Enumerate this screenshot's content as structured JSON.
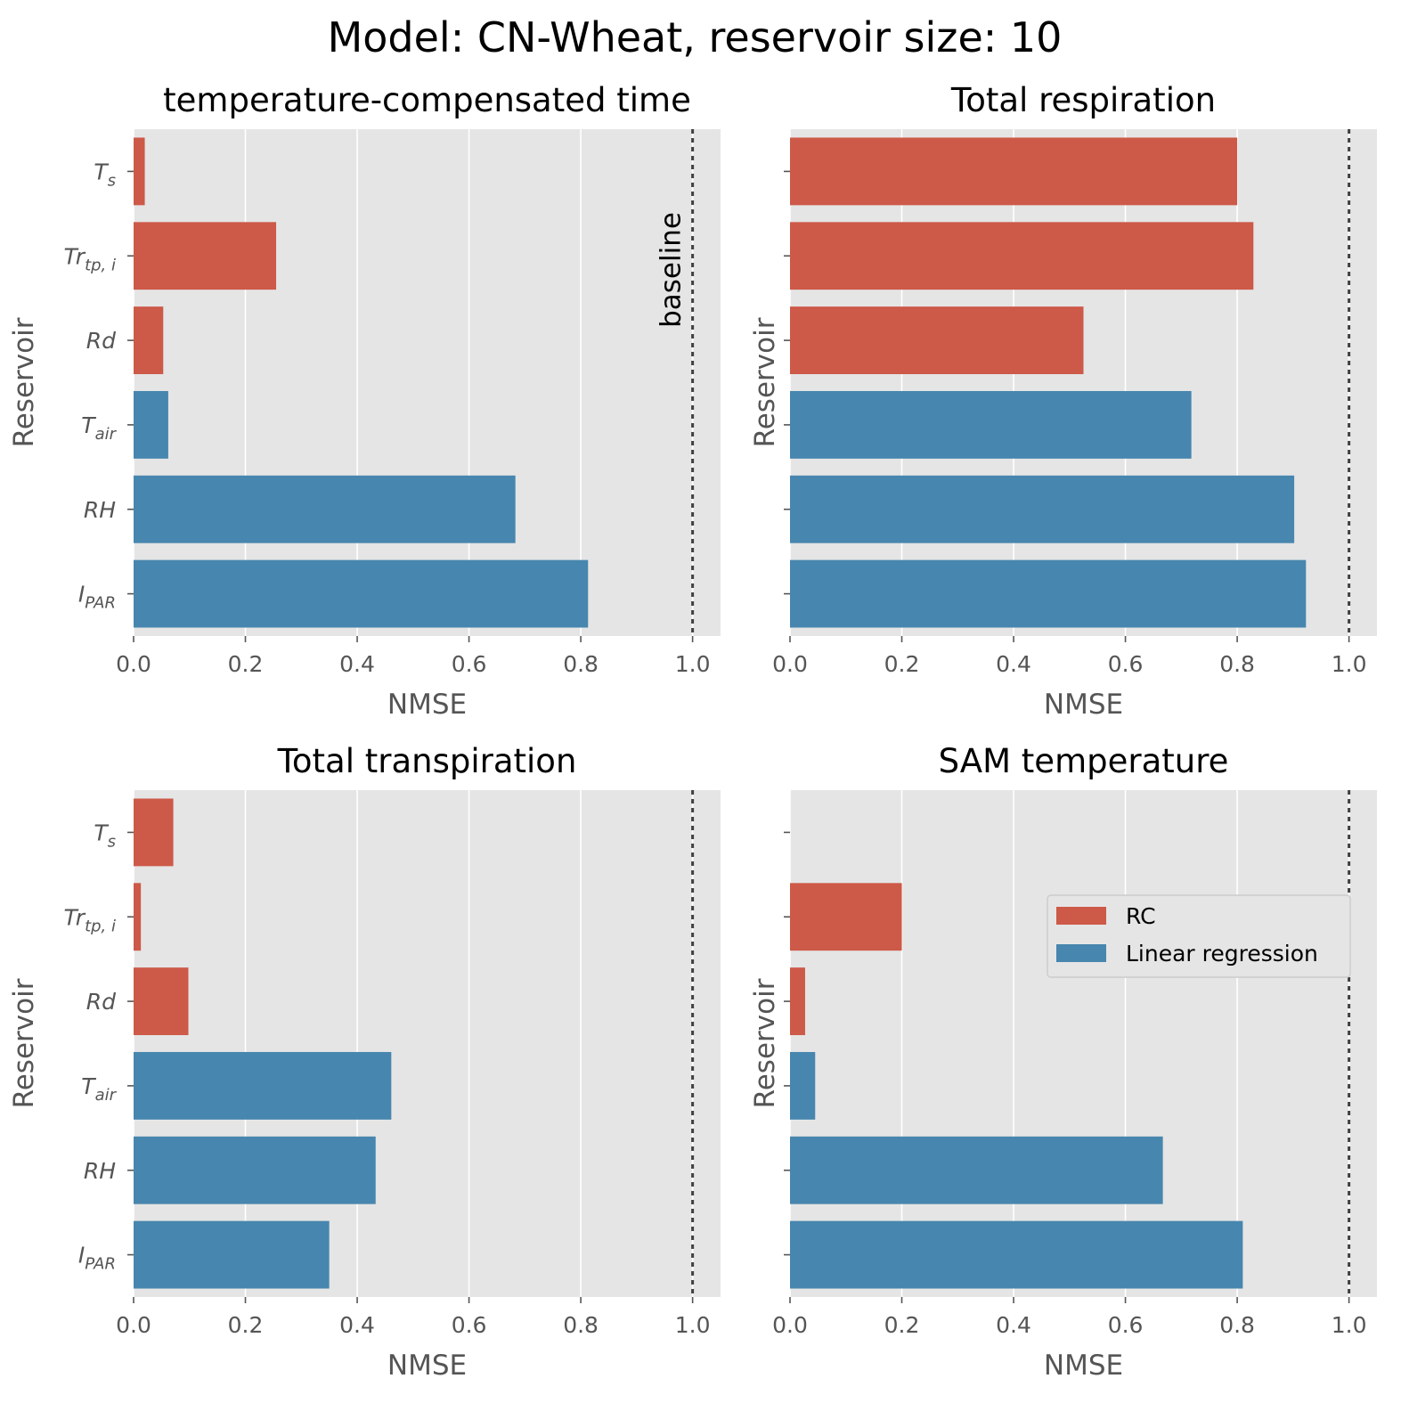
{
  "figure": {
    "title": "Model: CN-Wheat, reservoir size: 10"
  },
  "colors": {
    "RC": "#cd5948",
    "Linear regression": "#4786ae",
    "plot_background": "#e5e5e5",
    "grid": "#ffffff",
    "baseline": "#404040"
  },
  "chart_data": [
    {
      "type": "bar",
      "orientation": "horizontal",
      "title": "temperature-compensated time",
      "xlabel": "NMSE",
      "ylabel": "Reservoir",
      "xlim": [
        0,
        1.05
      ],
      "xticks": [
        "0.0",
        "0.2",
        "0.4",
        "0.6",
        "0.8",
        "1.0"
      ],
      "grid": true,
      "categories": [
        {
          "base": "T",
          "sub": "s"
        },
        {
          "base": "Tr",
          "sub": "tp, i"
        },
        {
          "base": "Rd",
          "sub": ""
        },
        {
          "base": "T",
          "sub": "air"
        },
        {
          "base": "RH",
          "sub": ""
        },
        {
          "base": "I",
          "sub": "PAR"
        }
      ],
      "values": [
        0.02,
        0.255,
        0.053,
        0.062,
        0.683,
        0.813
      ],
      "groups": [
        "RC",
        "RC",
        "RC",
        "Linear regression",
        "Linear regression",
        "Linear regression"
      ],
      "baseline": {
        "x": 1.0,
        "label": "baseline"
      },
      "show_ytick_labels": true
    },
    {
      "type": "bar",
      "orientation": "horizontal",
      "title": "Total respiration",
      "xlabel": "NMSE",
      "ylabel": "Reservoir",
      "xlim": [
        0,
        1.05
      ],
      "xticks": [
        "0.0",
        "0.2",
        "0.4",
        "0.6",
        "0.8",
        "1.0"
      ],
      "grid": true,
      "categories": [
        {
          "base": "T",
          "sub": "s"
        },
        {
          "base": "Tr",
          "sub": "tp, i"
        },
        {
          "base": "Rd",
          "sub": ""
        },
        {
          "base": "T",
          "sub": "air"
        },
        {
          "base": "RH",
          "sub": ""
        },
        {
          "base": "I",
          "sub": "PAR"
        }
      ],
      "values": [
        0.8,
        0.829,
        0.525,
        0.718,
        0.902,
        0.923
      ],
      "groups": [
        "RC",
        "RC",
        "RC",
        "Linear regression",
        "Linear regression",
        "Linear regression"
      ],
      "baseline": {
        "x": 1.0,
        "label": ""
      },
      "show_ytick_labels": false
    },
    {
      "type": "bar",
      "orientation": "horizontal",
      "title": "Total transpiration",
      "xlabel": "NMSE",
      "ylabel": "Reservoir",
      "xlim": [
        0,
        1.05
      ],
      "xticks": [
        "0.0",
        "0.2",
        "0.4",
        "0.6",
        "0.8",
        "1.0"
      ],
      "grid": true,
      "categories": [
        {
          "base": "T",
          "sub": "s"
        },
        {
          "base": "Tr",
          "sub": "tp, i"
        },
        {
          "base": "Rd",
          "sub": ""
        },
        {
          "base": "T",
          "sub": "air"
        },
        {
          "base": "RH",
          "sub": ""
        },
        {
          "base": "I",
          "sub": "PAR"
        }
      ],
      "values": [
        0.071,
        0.013,
        0.098,
        0.461,
        0.433,
        0.35
      ],
      "groups": [
        "RC",
        "RC",
        "RC",
        "Linear regression",
        "Linear regression",
        "Linear regression"
      ],
      "baseline": {
        "x": 1.0,
        "label": ""
      },
      "show_ytick_labels": true
    },
    {
      "type": "bar",
      "orientation": "horizontal",
      "title": "SAM temperature",
      "xlabel": "NMSE",
      "ylabel": "Reservoir",
      "xlim": [
        0,
        1.05
      ],
      "xticks": [
        "0.0",
        "0.2",
        "0.4",
        "0.6",
        "0.8",
        "1.0"
      ],
      "grid": true,
      "categories": [
        {
          "base": "T",
          "sub": "s"
        },
        {
          "base": "Tr",
          "sub": "tp, i"
        },
        {
          "base": "Rd",
          "sub": ""
        },
        {
          "base": "T",
          "sub": "air"
        },
        {
          "base": "RH",
          "sub": ""
        },
        {
          "base": "I",
          "sub": "PAR"
        }
      ],
      "values": [
        0.0,
        0.2,
        0.027,
        0.045,
        0.667,
        0.81
      ],
      "groups": [
        "RC",
        "RC",
        "RC",
        "Linear regression",
        "Linear regression",
        "Linear regression"
      ],
      "baseline": {
        "x": 1.0,
        "label": ""
      },
      "show_ytick_labels": false,
      "legend": {
        "placement": "center-right",
        "entries": [
          {
            "label": "RC",
            "group": "RC"
          },
          {
            "label": "Linear regression",
            "group": "Linear regression"
          }
        ]
      }
    }
  ]
}
